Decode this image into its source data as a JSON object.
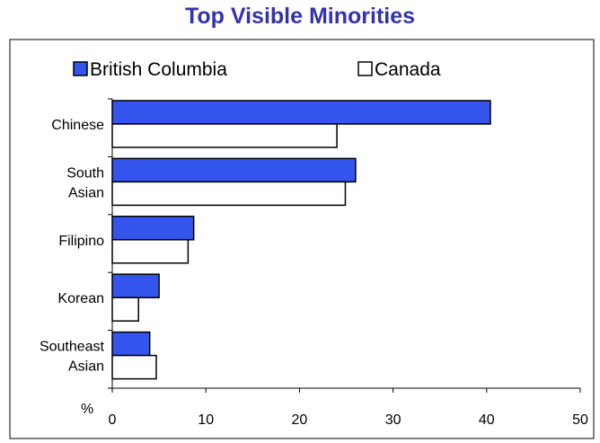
{
  "chart_data": {
    "type": "bar",
    "orientation": "horizontal",
    "title": "Top Visible Minorities",
    "ylabel": "%",
    "xlim": [
      0,
      50
    ],
    "x_ticks": [
      "0",
      "10",
      "20",
      "30",
      "40",
      "50"
    ],
    "categories": [
      [
        "Chinese"
      ],
      [
        "South",
        "Asian"
      ],
      [
        "Filipino"
      ],
      [
        "Korean"
      ],
      [
        "Southeast",
        "Asian"
      ]
    ],
    "series": [
      {
        "name": "British Columbia",
        "color": "#3355ee",
        "values": [
          40.4,
          26.0,
          8.7,
          5.0,
          4.0
        ]
      },
      {
        "name": "Canada",
        "color": "#ffffff",
        "values": [
          24.0,
          24.9,
          8.1,
          2.8,
          4.7
        ]
      }
    ],
    "legend": "top",
    "grid": false
  }
}
